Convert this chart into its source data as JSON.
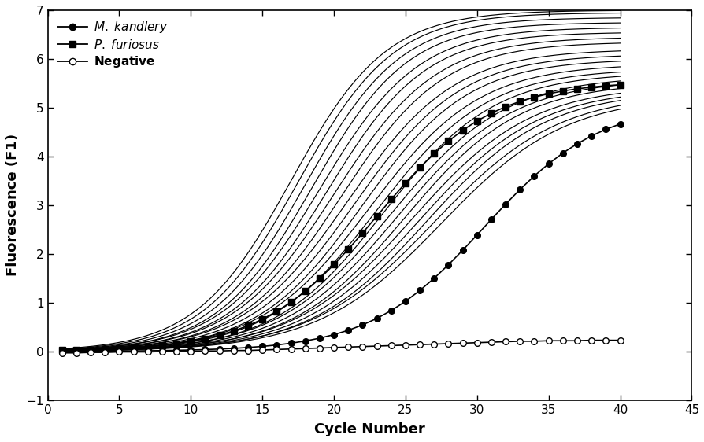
{
  "xlim": [
    0,
    45
  ],
  "ylim": [
    -1,
    7
  ],
  "xticks": [
    0,
    5,
    10,
    15,
    20,
    25,
    30,
    35,
    40,
    45
  ],
  "yticks": [
    -1,
    0,
    1,
    2,
    3,
    4,
    5,
    6,
    7
  ],
  "xlabel": "Cycle Number",
  "ylabel": "Fluorescence (F1)",
  "plain_curves": [
    {
      "midpoint": 17.0,
      "plateau": 7.0,
      "steepness": 0.3
    },
    {
      "midpoint": 17.5,
      "plateau": 6.95,
      "steepness": 0.3
    },
    {
      "midpoint": 18.0,
      "plateau": 6.85,
      "steepness": 0.3
    },
    {
      "midpoint": 18.5,
      "plateau": 6.75,
      "steepness": 0.3
    },
    {
      "midpoint": 19.0,
      "plateau": 6.65,
      "steepness": 0.29
    },
    {
      "midpoint": 19.5,
      "plateau": 6.55,
      "steepness": 0.29
    },
    {
      "midpoint": 20.0,
      "plateau": 6.45,
      "steepness": 0.28
    },
    {
      "midpoint": 20.5,
      "plateau": 6.35,
      "steepness": 0.28
    },
    {
      "midpoint": 21.0,
      "plateau": 6.2,
      "steepness": 0.27
    },
    {
      "midpoint": 21.5,
      "plateau": 6.1,
      "steepness": 0.27
    },
    {
      "midpoint": 22.0,
      "plateau": 6.0,
      "steepness": 0.27
    },
    {
      "midpoint": 22.5,
      "plateau": 5.9,
      "steepness": 0.26
    },
    {
      "midpoint": 23.0,
      "plateau": 5.8,
      "steepness": 0.26
    },
    {
      "midpoint": 23.5,
      "plateau": 5.72,
      "steepness": 0.26
    },
    {
      "midpoint": 24.0,
      "plateau": 5.65,
      "steepness": 0.25
    },
    {
      "midpoint": 24.5,
      "plateau": 5.58,
      "steepness": 0.25
    },
    {
      "midpoint": 25.0,
      "plateau": 5.52,
      "steepness": 0.25
    },
    {
      "midpoint": 25.5,
      "plateau": 5.46,
      "steepness": 0.24
    },
    {
      "midpoint": 26.0,
      "plateau": 5.4,
      "steepness": 0.24
    },
    {
      "midpoint": 26.5,
      "plateau": 5.35,
      "steepness": 0.24
    },
    {
      "midpoint": 27.0,
      "plateau": 5.3,
      "steepness": 0.23
    },
    {
      "midpoint": 27.5,
      "plateau": 5.25,
      "steepness": 0.23
    }
  ],
  "p_furiosus": {
    "midpoint": 23.0,
    "plateau": 5.55,
    "steepness": 0.25
  },
  "m_kandlery": {
    "midpoint": 30.5,
    "plateau": 5.1,
    "steepness": 0.25
  },
  "neg_values": [
    -0.03,
    -0.03,
    -0.02,
    -0.02,
    -0.01,
    -0.01,
    -0.01,
    0.0,
    0.0,
    0.0,
    0.01,
    0.01,
    0.02,
    0.02,
    0.03,
    0.04,
    0.05,
    0.06,
    0.07,
    0.08,
    0.09,
    0.1,
    0.11,
    0.12,
    0.13,
    0.14,
    0.15,
    0.16,
    0.17,
    0.18,
    0.19,
    0.2,
    0.21,
    0.21,
    0.22,
    0.22,
    0.22,
    0.23,
    0.23,
    0.23
  ],
  "background": "#ffffff",
  "line_color": "#000000"
}
